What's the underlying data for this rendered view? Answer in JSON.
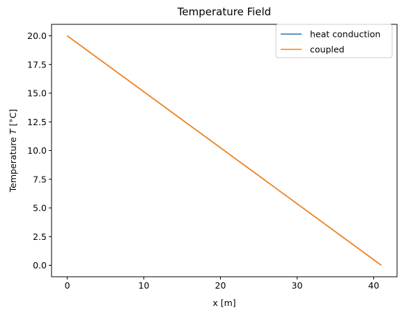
{
  "chart_data": {
    "type": "line",
    "title": "Temperature Field",
    "xlabel": "x [m]",
    "ylabel_prefix": "Temperature ",
    "ylabel_symbol": "T",
    "ylabel_unit": " [°C]",
    "xlim": [
      -2.05,
      43.05
    ],
    "ylim": [
      -1.0,
      21.0
    ],
    "xticks": [
      0,
      10,
      20,
      30,
      40
    ],
    "xtick_labels": [
      "0",
      "10",
      "20",
      "30",
      "40"
    ],
    "yticks": [
      0,
      2.5,
      5,
      7.5,
      10,
      12.5,
      15,
      17.5,
      20
    ],
    "ytick_labels": [
      "0.0",
      "2.5",
      "5.0",
      "7.5",
      "10.0",
      "12.5",
      "15.0",
      "17.5",
      "20.0"
    ],
    "grid": false,
    "legend_position": "top-right",
    "series": [
      {
        "name": "heat conduction",
        "color": "#1f77b4",
        "x": [
          0,
          41
        ],
        "y": [
          20,
          0
        ]
      },
      {
        "name": "coupled",
        "color": "#ff7f0e",
        "x": [
          0,
          41
        ],
        "y": [
          20,
          0
        ]
      }
    ]
  }
}
